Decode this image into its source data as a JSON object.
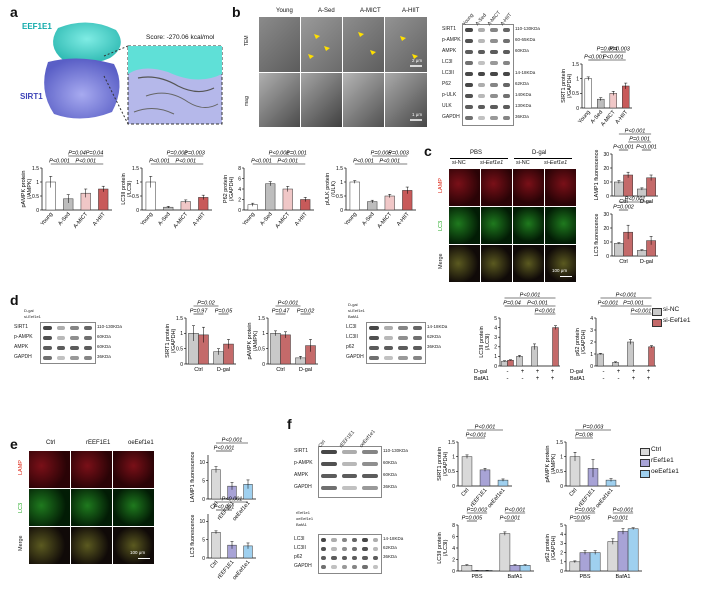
{
  "colors": {
    "young": "#ffffff",
    "sed": "#bdbdbd",
    "mict": "#f0c7c7",
    "hiit": "#c85a5a",
    "ctrl": "#c9c9c9",
    "sinc": "#c9c9c9",
    "siEef": "#c46a6a",
    "ctrlPale": "#d9d9d9",
    "reef": "#a8a3d6",
    "oe": "#9fd0ef",
    "docking_cyan": "#4fd8d0",
    "docking_blue": "#7b7fd6"
  },
  "panel_a": {
    "label": "a",
    "eef1e1": "EEF1E1",
    "sirt1": "SIRT1",
    "score": "Score: -270.06 kcal/mol"
  },
  "panel_b": {
    "label": "b",
    "groups": [
      "Young",
      "A-Sed",
      "A-MICT",
      "A-HIIT"
    ],
    "row_labels": [
      "TEM",
      "mag"
    ],
    "scale1": "2 μm",
    "scale2": "1 μm",
    "blot_lanes": [
      "Young",
      "A-Sed",
      "A-MICT",
      "A-HIIT"
    ],
    "blot_rows": [
      "SIRT1",
      "p-AMPK",
      "AMPK",
      "LC3I",
      "LC3II",
      "P62",
      "p-ULK",
      "ULK",
      "GAPDH"
    ],
    "blot_sizes": [
      "110-130KDa",
      "60-65KDa",
      "60KDa",
      "",
      "14-18KDa",
      "62KDa",
      "140KDa",
      "130KDa",
      "36KDa"
    ]
  },
  "panel_c": {
    "label": "c",
    "top_groups": [
      "PBS",
      "D-gal"
    ],
    "lanes": [
      "si-NC",
      "si-Eef1e1",
      "si-NC",
      "si-Eef1e1"
    ],
    "rows": [
      "LAMP",
      "LC3",
      "Merge"
    ],
    "scale": "100 μm"
  },
  "panel_d": {
    "label": "d",
    "blot1_rows": [
      "SIRT1",
      "p-AMPK",
      "AMPK",
      "GAPDH"
    ],
    "blot1_sizes": [
      "110-130KDa",
      "60KDa",
      "60KDa",
      "36KDa"
    ],
    "blot1_treat": [
      "D-gal",
      "si-Eef1e1"
    ],
    "blot2_treat": [
      "D-gal",
      "si-Eef1e1",
      "BafA1"
    ],
    "blot2_rows": [
      "LC3I",
      "LC3II",
      "p62",
      "GAPDH"
    ],
    "blot2_sizes": [
      "14-18KDa",
      "62KDa",
      "36KDa"
    ],
    "legend": [
      "si-NC",
      "si-Eef1e1"
    ],
    "xrow": [
      "D-gal",
      "BafA1"
    ],
    "plus_minus_dgal": [
      "-",
      "+",
      "+",
      "+"
    ],
    "plus_minus_baf": [
      "-",
      "-",
      "+",
      "+"
    ]
  },
  "panel_e": {
    "label": "e",
    "cols": [
      "Ctrl",
      "rEEF1E1",
      "oeEef1e1"
    ],
    "rows": [
      "LAMP",
      "LC3",
      "Merge"
    ],
    "scale": "100 μm"
  },
  "panel_f": {
    "label": "f",
    "blot1_cols": [
      "Ctrl",
      "rEEF1E1",
      "oeEef1e1"
    ],
    "blot1_rows": [
      "SIRT1",
      "p-AMPK",
      "AMPK",
      "GAPDH"
    ],
    "blot1_sizes": [
      "110-130KDa",
      "60KDa",
      "60KDa",
      "36KDa"
    ],
    "blot2_treat": [
      "rEef1e1",
      "oeEef1e1",
      "BafA1"
    ],
    "blot2_rows": [
      "LC3I",
      "LC3II",
      "p62",
      "GAPDH"
    ],
    "blot2_sizes": [
      "14-18KDa",
      "62KDa",
      "36KDa"
    ],
    "legend": [
      "Ctrl",
      "rEef1e1",
      "oeEef1e1"
    ]
  },
  "chart_data": [
    {
      "id": "b_sirt1",
      "type": "bar",
      "categories": [
        "Young",
        "A-Sed",
        "A-MICT",
        "A-HIIT"
      ],
      "values": [
        1.0,
        0.3,
        0.5,
        0.75
      ],
      "errors": [
        0.06,
        0.05,
        0.07,
        0.1
      ],
      "ylabel": "SIRT1 protein\n(/GAPDH)",
      "yticks": [
        0.0,
        0.5,
        1.0,
        1.5
      ],
      "ylim": [
        0,
        1.5
      ],
      "sig": [
        [
          "P<0.001",
          0,
          1,
          0
        ],
        [
          "P<0.001",
          1,
          3,
          0
        ],
        [
          "P=0.004",
          1,
          2,
          1
        ],
        [
          "P=0.003",
          2,
          3,
          1
        ]
      ],
      "colorKeys": [
        "young",
        "sed",
        "mict",
        "hiit"
      ]
    },
    {
      "id": "pampk",
      "type": "bar",
      "categories": [
        "Young",
        "A-Sed",
        "A-MICT",
        "A-HIIT"
      ],
      "values": [
        1.0,
        0.4,
        0.6,
        0.75
      ],
      "errors": [
        0.2,
        0.15,
        0.15,
        0.1
      ],
      "ylabel": "pAMPK protein\n(/AMPK)",
      "yticks": [
        0.0,
        0.5,
        1.0,
        1.5
      ],
      "ylim": [
        0,
        1.5
      ],
      "sig": [
        [
          "P<0.001",
          0,
          1,
          0
        ],
        [
          "P<0.001",
          1,
          3,
          0
        ],
        [
          "P=0.04",
          1,
          2,
          1
        ],
        [
          "P=0.04",
          2,
          3,
          1
        ]
      ],
      "colorKeys": [
        "young",
        "sed",
        "mict",
        "hiit"
      ]
    },
    {
      "id": "lc3ii",
      "type": "bar",
      "categories": [
        "Young",
        "A-Sed",
        "A-MICT",
        "A-HIIT"
      ],
      "values": [
        1.0,
        0.1,
        0.3,
        0.45
      ],
      "errors": [
        0.2,
        0.03,
        0.06,
        0.08
      ],
      "ylabel": "LC3II protein\n(/LC3I)",
      "yticks": [
        0.0,
        0.5,
        1.0,
        1.5
      ],
      "ylim": [
        0,
        1.5
      ],
      "sig": [
        [
          "P<0.001",
          0,
          1,
          0
        ],
        [
          "P<0.001",
          1,
          3,
          0
        ],
        [
          "P=0.002",
          1,
          2,
          1
        ],
        [
          "P=0.003",
          2,
          3,
          1
        ]
      ],
      "colorKeys": [
        "young",
        "sed",
        "mict",
        "hiit"
      ]
    },
    {
      "id": "p62",
      "type": "bar",
      "categories": [
        "Young",
        "A-Sed",
        "A-MICT",
        "A-HIIT"
      ],
      "values": [
        1.0,
        5.0,
        4.0,
        2.0
      ],
      "errors": [
        0.3,
        0.4,
        0.5,
        0.4
      ],
      "ylabel": "P62 protein\n(/GAPDH)",
      "yticks": [
        0,
        2,
        4,
        6,
        8
      ],
      "ylim": [
        0,
        8
      ],
      "sig": [
        [
          "P<0.001",
          0,
          1,
          0
        ],
        [
          "P<0.001",
          1,
          3,
          0
        ],
        [
          "P<0.001",
          1,
          2,
          1
        ],
        [
          "P=0.001",
          2,
          3,
          1
        ]
      ],
      "colorKeys": [
        "young",
        "sed",
        "mict",
        "hiit"
      ]
    },
    {
      "id": "pulk",
      "type": "bar",
      "categories": [
        "Young",
        "A-Sed",
        "A-MICT",
        "A-HIIT"
      ],
      "values": [
        1.0,
        0.3,
        0.5,
        0.7
      ],
      "errors": [
        0.05,
        0.05,
        0.06,
        0.12
      ],
      "ylabel": "pULK protein\n(/ULK)",
      "yticks": [
        0.0,
        0.5,
        1.0,
        1.5
      ],
      "ylim": [
        0,
        1.5
      ],
      "sig": [
        [
          "P<0.001",
          0,
          1,
          0
        ],
        [
          "P<0.001",
          1,
          3,
          0
        ],
        [
          "P=0.005",
          1,
          2,
          1
        ],
        [
          "P=0.003",
          2,
          3,
          1
        ]
      ],
      "colorKeys": [
        "young",
        "sed",
        "mict",
        "hiit"
      ]
    },
    {
      "id": "lamp1_c",
      "type": "grouped-bar",
      "groups": [
        "Ctrl",
        "D-gal"
      ],
      "series": [
        {
          "name": "si-NC",
          "values": [
            10,
            5
          ],
          "errors": [
            1,
            0.8
          ]
        },
        {
          "name": "si-Eef1e1",
          "values": [
            15,
            13
          ],
          "errors": [
            2,
            2
          ]
        }
      ],
      "ylabel": "LAMP1 fluorescence",
      "yticks": [
        0,
        10,
        20,
        30
      ],
      "ylim": [
        0,
        30
      ],
      "sig": [
        [
          "P<0.001",
          "0a",
          "1b",
          2
        ],
        [
          "P<0.001",
          "0a",
          "0b",
          0
        ],
        [
          "P<0.001",
          "1a",
          "1b",
          0
        ],
        [
          "P=0.001",
          "0b",
          "1b",
          1
        ]
      ],
      "colorKeys": [
        "sinc",
        "siEef"
      ]
    },
    {
      "id": "lc3_c",
      "type": "grouped-bar",
      "groups": [
        "Ctrl",
        "D-gal"
      ],
      "series": [
        {
          "name": "si-NC",
          "values": [
            9,
            4
          ],
          "errors": [
            0.5,
            0.5
          ]
        },
        {
          "name": "si-Eef1e1",
          "values": [
            17,
            11
          ],
          "errors": [
            5,
            3
          ]
        }
      ],
      "ylabel": "LC3 fluorescence",
      "yticks": [
        0,
        10,
        20,
        30
      ],
      "ylim": [
        0,
        30
      ],
      "sig": [
        [
          "P<0.001",
          "0a",
          "1b",
          1
        ],
        [
          "P=0.002",
          "0a",
          "0b",
          0
        ]
      ],
      "colorKeys": [
        "sinc",
        "siEef"
      ]
    },
    {
      "id": "sirt1_d",
      "type": "grouped-bar",
      "groups": [
        "Ctrl",
        "D-gal"
      ],
      "series": [
        {
          "name": "si-NC",
          "values": [
            1.0,
            0.4
          ],
          "errors": [
            0.25,
            0.1
          ]
        },
        {
          "name": "si-Eef1e1",
          "values": [
            0.95,
            0.65
          ],
          "errors": [
            0.25,
            0.15
          ]
        }
      ],
      "ylabel": "SIRT1 protein\n(/GAPDH)",
      "yticks": [
        0.0,
        0.5,
        1.0,
        1.5
      ],
      "ylim": [
        0,
        1.5
      ],
      "sig": [
        [
          "P=0.02",
          "0a",
          "1a",
          1
        ],
        [
          "P=0.97",
          "0a",
          "0b",
          0
        ],
        [
          "P=0.05",
          "1a",
          "1b",
          0
        ]
      ],
      "colorKeys": [
        "sinc",
        "siEef"
      ]
    },
    {
      "id": "pampk_d",
      "type": "grouped-bar",
      "groups": [
        "Ctrl",
        "D-gal"
      ],
      "series": [
        {
          "name": "si-NC",
          "values": [
            1.0,
            0.2
          ],
          "errors": [
            0.08,
            0.05
          ]
        },
        {
          "name": "si-Eef1e1",
          "values": [
            0.95,
            0.6
          ],
          "errors": [
            0.1,
            0.2
          ]
        }
      ],
      "ylabel": "pAMPK protein\n(/AMPK)",
      "yticks": [
        0.0,
        0.5,
        1.0,
        1.5
      ],
      "ylim": [
        0,
        1.5
      ],
      "sig": [
        [
          "P<0.001",
          "0a",
          "1a",
          1
        ],
        [
          "P=0.47",
          "0a",
          "0b",
          0
        ],
        [
          "P=0.02",
          "1a",
          "1b",
          0
        ]
      ],
      "colorKeys": [
        "sinc",
        "siEef"
      ]
    },
    {
      "id": "lc3ii_d",
      "type": "grouped-bar",
      "groups": [
        "-/-",
        "+/-",
        "+/+ (si-NC)",
        "+/+ (si-Eef1e1)"
      ],
      "series": [
        {
          "name": "si-NC",
          "values": [
            0.5,
            1.0,
            2.0,
            null
          ],
          "errors": [
            0.05,
            0.1,
            0.3,
            null
          ]
        },
        {
          "name": "si-Eef1e1",
          "values": [
            0.6,
            null,
            null,
            4.0
          ],
          "errors": [
            0.05,
            null,
            null,
            0.2
          ]
        }
      ],
      "ylabel": "LC3II protein\n(/LC3I)",
      "yticks": [
        0,
        1,
        2,
        3,
        4,
        5
      ],
      "ylim": [
        0,
        5
      ],
      "sig": [
        [
          "P<0.001",
          0,
          3,
          2
        ],
        [
          "P=0.04",
          0,
          1,
          1
        ],
        [
          "P<0.001",
          1,
          3,
          1
        ],
        [
          "P<0.001",
          2,
          3,
          0
        ]
      ],
      "colorKeys": [
        "sinc",
        "siEef"
      ]
    },
    {
      "id": "p62_d",
      "type": "grouped-bar",
      "groups": [
        "-/-",
        "+/-",
        "+/+ (si-NC)",
        "+/+ (si-Eef1e1)"
      ],
      "series": [
        {
          "name": "si-NC",
          "values": [
            1.0,
            0.3,
            2.0,
            null
          ],
          "errors": [
            0.05,
            0.05,
            0.2,
            null
          ]
        },
        {
          "name": "si-Eef1e1",
          "values": [
            null,
            null,
            null,
            1.6
          ],
          "errors": [
            null,
            null,
            null,
            0.1
          ]
        }
      ],
      "ylabel": "p62 protein\n(/GAPDH)",
      "yticks": [
        0,
        1,
        2,
        3,
        4
      ],
      "ylim": [
        0,
        4
      ],
      "sig": [
        [
          "P<0.001",
          0,
          3,
          2
        ],
        [
          "P<0.001",
          0,
          1,
          1
        ],
        [
          "P=0.001",
          1,
          3,
          1
        ],
        [
          "P<0.001",
          2,
          3,
          0
        ]
      ],
      "colorKeys": [
        "sinc",
        "siEef"
      ]
    },
    {
      "id": "lamp1_e",
      "type": "bar",
      "categories": [
        "Ctrl",
        "rEEF1E1",
        "oeEef1e1"
      ],
      "values": [
        8,
        3.5,
        4
      ],
      "errors": [
        0.8,
        1,
        1.2
      ],
      "ylabel": "LAMP1 fluorescence",
      "yticks": [
        0,
        5,
        10
      ],
      "ylim": [
        0,
        12
      ],
      "sig": [
        [
          "P<0.001",
          0,
          2,
          1
        ],
        [
          "P<0.001",
          0,
          1,
          0
        ]
      ],
      "colorKeys": [
        "ctrlPale",
        "reef",
        "oe"
      ]
    },
    {
      "id": "lc3_e",
      "type": "bar",
      "categories": [
        "Ctrl",
        "rEEF1E1",
        "oeEef1e1"
      ],
      "values": [
        7,
        3.5,
        3.3
      ],
      "errors": [
        0.4,
        1,
        0.8
      ],
      "ylabel": "LC3 fluorescence",
      "yticks": [
        0,
        5,
        10
      ],
      "ylim": [
        0,
        12
      ],
      "sig": [
        [
          "P<0.001",
          0,
          2,
          1
        ],
        [
          "P<0.001",
          0,
          1,
          0
        ]
      ],
      "colorKeys": [
        "ctrlPale",
        "reef",
        "oe"
      ]
    },
    {
      "id": "sirt1_f",
      "type": "bar",
      "categories": [
        "Ctrl",
        "rEEF1E1",
        "oeEef1e1"
      ],
      "values": [
        1.0,
        0.55,
        0.2
      ],
      "errors": [
        0.06,
        0.05,
        0.04
      ],
      "ylabel": "SIRT1 protein\n(/GAPDH)",
      "yticks": [
        0.0,
        0.5,
        1.0,
        1.5
      ],
      "ylim": [
        0,
        1.5
      ],
      "sig": [
        [
          "P<0.001",
          0,
          2,
          1
        ],
        [
          "P<0.001",
          0,
          1,
          0
        ]
      ],
      "colorKeys": [
        "ctrlPale",
        "reef",
        "oe"
      ]
    },
    {
      "id": "pampk_f",
      "type": "bar",
      "categories": [
        "Ctrl",
        "rEEF1E1",
        "oeEef1e1"
      ],
      "values": [
        1.0,
        0.6,
        0.2
      ],
      "errors": [
        0.15,
        0.3,
        0.05
      ],
      "ylabel": "pAMPK protein\n(/AMPK)",
      "yticks": [
        0.0,
        0.5,
        1.0,
        1.5
      ],
      "ylim": [
        0,
        1.5
      ],
      "sig": [
        [
          "P=0.003",
          0,
          2,
          1
        ],
        [
          "P=0.08",
          0,
          1,
          0
        ]
      ],
      "colorKeys": [
        "ctrlPale",
        "reef",
        "oe"
      ]
    },
    {
      "id": "lc3ii_f",
      "type": "grouped-bar",
      "groups": [
        "PBS",
        "BafA1"
      ],
      "series": [
        {
          "name": "Ctrl",
          "values": [
            1.0,
            6.5
          ],
          "errors": [
            0.1,
            0.3
          ]
        },
        {
          "name": "rEef1e1",
          "values": [
            0.1,
            1.0
          ],
          "errors": [
            0.02,
            0.1
          ]
        },
        {
          "name": "oeEef1e1",
          "values": [
            0.1,
            1.0
          ],
          "errors": [
            0.02,
            0.1
          ]
        }
      ],
      "ylabel": "LC3II protein\n(/LC3I)",
      "yticks": [
        0,
        2,
        4,
        6,
        8
      ],
      "ylim": [
        0,
        8
      ],
      "sig": [
        [
          "P=0.002",
          "0a",
          "0c",
          1
        ],
        [
          "P=0.005",
          "0a",
          "0b",
          0
        ],
        [
          "P<0.001",
          "1a",
          "1c",
          1
        ],
        [
          "P<0.001",
          "1a",
          "1b",
          0
        ]
      ],
      "colorKeys": [
        "ctrlPale",
        "reef",
        "oe"
      ]
    },
    {
      "id": "p62_f",
      "type": "grouped-bar",
      "groups": [
        "PBS",
        "BafA1"
      ],
      "series": [
        {
          "name": "Ctrl",
          "values": [
            1.0,
            3.2
          ],
          "errors": [
            0.1,
            0.3
          ]
        },
        {
          "name": "rEef1e1",
          "values": [
            2.0,
            4.3
          ],
          "errors": [
            0.2,
            0.3
          ]
        },
        {
          "name": "oeEef1e1",
          "values": [
            2.0,
            4.6
          ],
          "errors": [
            0.2,
            0.1
          ]
        }
      ],
      "ylabel": "p62 protein\n(/GAPDH)",
      "yticks": [
        0,
        1,
        2,
        3,
        4,
        5
      ],
      "ylim": [
        0,
        5
      ],
      "sig": [
        [
          "P=0.002",
          "0a",
          "0c",
          1
        ],
        [
          "P=0.005",
          "0a",
          "0b",
          0
        ],
        [
          "P<0.001",
          "1a",
          "1c",
          1
        ],
        [
          "P<0.001",
          "1a",
          "1b",
          0
        ]
      ],
      "colorKeys": [
        "ctrlPale",
        "reef",
        "oe"
      ]
    }
  ]
}
